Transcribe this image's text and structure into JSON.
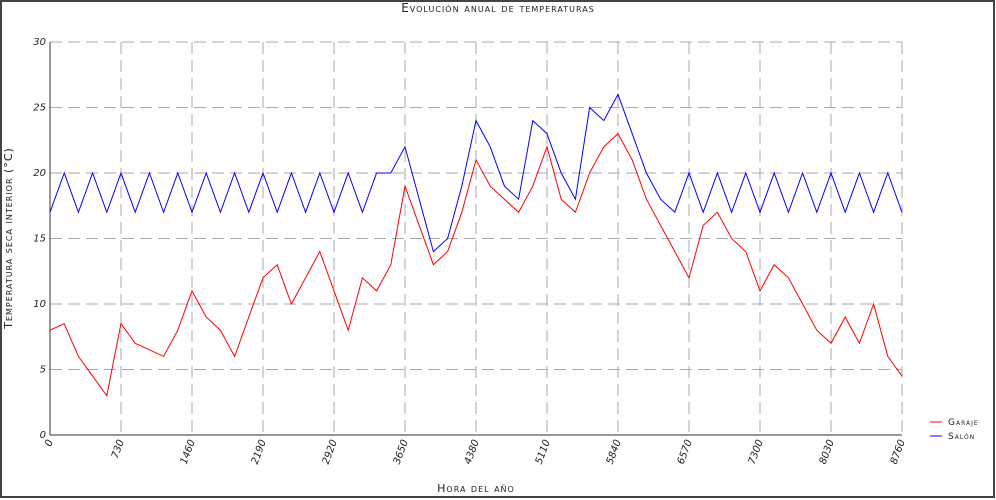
{
  "chart_data": {
    "type": "line",
    "title": "Evolución anual de temperaturas",
    "x_label": "Hora del año",
    "y_label": "Temperatura seca interior (°C)",
    "x": [
      0,
      146,
      292,
      438,
      584,
      730,
      876,
      1022,
      1168,
      1314,
      1460,
      1606,
      1752,
      1898,
      2044,
      2190,
      2336,
      2482,
      2628,
      2774,
      2920,
      3066,
      3212,
      3358,
      3504,
      3650,
      3796,
      3942,
      4088,
      4234,
      4380,
      4526,
      4672,
      4818,
      4964,
      5110,
      5256,
      5402,
      5548,
      5694,
      5840,
      5986,
      6132,
      6278,
      6424,
      6570,
      6716,
      6862,
      7008,
      7154,
      7300,
      7446,
      7592,
      7738,
      7884,
      8030,
      8176,
      8322,
      8468,
      8614,
      8760
    ],
    "series": [
      {
        "name": "Garaje",
        "color": "#ff0000",
        "values": [
          8,
          8.5,
          6,
          4.5,
          3,
          8.5,
          7,
          6.5,
          6,
          8,
          11,
          9,
          8,
          6,
          9,
          12,
          13,
          10,
          12,
          14,
          11,
          8,
          12,
          11,
          13,
          19,
          16,
          13,
          14,
          17,
          21,
          19,
          18,
          17,
          19,
          22,
          18,
          17,
          20,
          22,
          23,
          21,
          18,
          16,
          14,
          12,
          16,
          17,
          15,
          14,
          11,
          13,
          12,
          10,
          8,
          7,
          9,
          7,
          10,
          6,
          4.5
        ]
      },
      {
        "name": "Salón",
        "color": "#0000ff",
        "values": [
          17,
          20,
          17,
          20,
          17,
          20,
          17,
          20,
          17,
          20,
          17,
          20,
          17,
          20,
          17,
          20,
          17,
          20,
          17,
          20,
          17,
          20,
          17,
          20,
          20,
          22,
          18,
          14,
          15,
          19,
          24,
          22,
          19,
          18,
          24,
          23,
          20,
          18,
          25,
          24,
          26,
          23,
          20,
          18,
          17,
          20,
          17,
          20,
          17,
          20,
          17,
          20,
          17,
          20,
          17,
          20,
          17,
          20,
          17,
          20,
          17
        ]
      }
    ],
    "xlim": [
      0,
      8760
    ],
    "xticks": [
      0,
      730,
      1460,
      2190,
      2920,
      3650,
      4380,
      5110,
      5840,
      6570,
      7300,
      8030,
      8760
    ],
    "ylim": [
      0,
      30
    ],
    "yticks": [
      0,
      5,
      10,
      15,
      20,
      25,
      30
    ],
    "grid": true,
    "legend": "right"
  }
}
